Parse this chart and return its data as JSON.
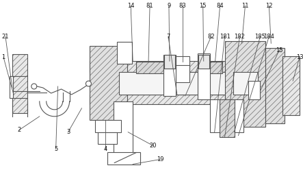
{
  "bg_color": "#ffffff",
  "line_color": "#555555",
  "lw": 0.8,
  "hatch_lw": 0.4,
  "fs": 6.0
}
